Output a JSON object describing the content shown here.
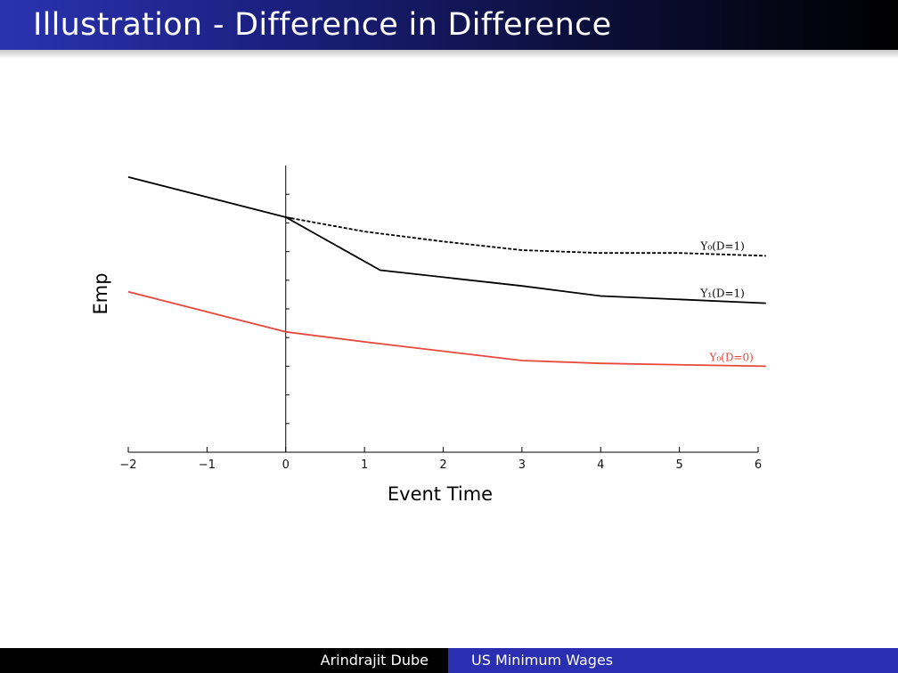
{
  "slide": {
    "title": "Illustration - Difference in Difference"
  },
  "footer": {
    "author": "Arindrajit Dube",
    "title": "US Minimum Wages"
  },
  "colors": {
    "title_bar_start": "#2a33b0",
    "footer_right": "#2a2eb0",
    "series_black": "#000000",
    "series_red": "#e8483c"
  },
  "chart_data": {
    "type": "line",
    "xlabel": "Event Time",
    "ylabel": "Emp",
    "xlim": [
      -2,
      6
    ],
    "ylim": [
      0,
      10
    ],
    "xticks": [
      -2,
      -1,
      0,
      1,
      2,
      3,
      4,
      5,
      6
    ],
    "xtick_labels": [
      "−2",
      "−1",
      "0",
      "1",
      "2",
      "3",
      "4",
      "5",
      "6"
    ],
    "vertical_axis_at_x": 0,
    "y_ticks_unlabeled": [
      1,
      2,
      3,
      4,
      5,
      6,
      7,
      8,
      9
    ],
    "grid": false,
    "series": [
      {
        "name": "Y₀(D=1)",
        "color": "#000000",
        "dash": "dashed",
        "points": [
          [
            0,
            8.2
          ],
          [
            1,
            7.7
          ],
          [
            2,
            7.35
          ],
          [
            3,
            7.05
          ],
          [
            4,
            6.95
          ],
          [
            5,
            6.95
          ],
          [
            6.1,
            6.85
          ]
        ]
      },
      {
        "name": "Y₁(D=1)",
        "color": "#000000",
        "dash": "solid",
        "points": [
          [
            -2,
            9.6
          ],
          [
            0,
            8.2
          ],
          [
            1.2,
            6.35
          ],
          [
            3,
            5.8
          ],
          [
            4,
            5.45
          ],
          [
            6.1,
            5.2
          ]
        ]
      },
      {
        "name": "Y₀(D=0)",
        "color": "#e8483c",
        "dash": "solid",
        "points": [
          [
            -2,
            5.6
          ],
          [
            0,
            4.2
          ],
          [
            1,
            3.85
          ],
          [
            3,
            3.2
          ],
          [
            4,
            3.1
          ],
          [
            6.1,
            3.0
          ]
        ]
      },
      {
        "name": "",
        "color": "#000000",
        "dash": "solid",
        "points": [
          [
            0,
            8.2
          ],
          [
            0.1,
            8.15
          ]
        ]
      }
    ]
  }
}
